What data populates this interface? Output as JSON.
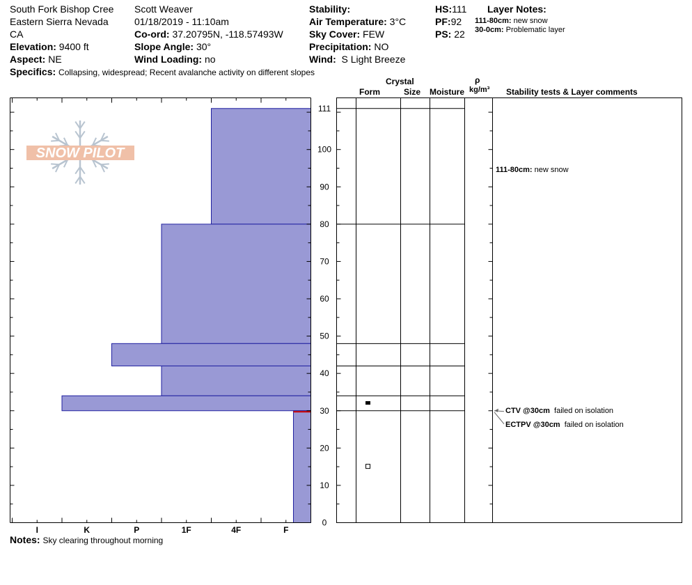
{
  "header": {
    "location": "South Fork Bishop Cree",
    "range": "Eastern Sierra Nevada",
    "state": "CA",
    "elevation_label": "Elevation:",
    "elevation_value": "9400 ft",
    "aspect_label": "Aspect:",
    "aspect_value": "NE",
    "specifics_label": "Specifics:",
    "specifics_value": "Collapsing, widespread;  Recent avalanche activity on different slopes",
    "observer": "Scott Weaver",
    "datetime": "01/18/2019 - 11:10am",
    "coord_label": "Co-ord:",
    "coord_value": "37.20795N, -118.57493W",
    "slope_label": "Slope Angle:",
    "slope_value": "30°",
    "wind_loading_label": "Wind Loading:",
    "wind_loading_value": "no",
    "stability_label": "Stability:",
    "air_temp_label": "Air Temperature:",
    "air_temp_value": "3°C",
    "sky_label": "Sky Cover:",
    "sky_value": "FEW",
    "precip_label": "Precipitation:",
    "precip_value": "NO",
    "wind_label": "Wind:",
    "wind_value": "S Light Breeze",
    "hs_label": "HS:",
    "hs_value": "111",
    "pf_label": "PF:",
    "pf_value": "92",
    "ps_label": "PS:",
    "ps_value": "22",
    "layer_notes_title": "Layer Notes:",
    "layer_notes": [
      {
        "range": "111-80cm:",
        "text": "new snow"
      },
      {
        "range": "30-0cm:",
        "text": "Problematic layer"
      }
    ]
  },
  "logo_text": "SNOW PILOT",
  "columns": {
    "crystal": "Crystal",
    "form": "Form",
    "size": "Size",
    "moisture": "Moisture",
    "rho": "ρ",
    "density_unit": "kg/m³",
    "stability": "Stability tests & Layer comments"
  },
  "comments": [
    {
      "range": "111-80cm:",
      "text": "new snow"
    }
  ],
  "tests": [
    {
      "label": "CTV @30cm",
      "result": "failed on isolation"
    },
    {
      "label": "ECTPV @30cm",
      "result": "failed on isolation"
    }
  ],
  "notes_label": "Notes:",
  "notes_value": "Sky clearing throughout morning",
  "colors": {
    "bar_fill": "#9999d5",
    "bar_stroke": "#2020a0",
    "weak_layer": "#cc0000",
    "logo": "#f0c0a8",
    "snowflake": "#b8c4d0"
  },
  "chart_data": {
    "type": "bar",
    "orientation": "horizontal",
    "title": "",
    "ylabel": "",
    "xlabel": "",
    "ylim": [
      0,
      114
    ],
    "yticks": [
      0,
      10,
      20,
      30,
      40,
      50,
      60,
      70,
      80,
      90,
      100,
      111
    ],
    "xcategories": [
      "I",
      "K",
      "P",
      "1F",
      "4F",
      "F"
    ],
    "hardness_scale_note": "F=1 ... I=6",
    "layers": [
      {
        "top": 111,
        "bottom": 80,
        "hardness_value": 2.0
      },
      {
        "top": 80,
        "bottom": 48,
        "hardness_value": 3.0
      },
      {
        "top": 48,
        "bottom": 42,
        "hardness_value": 4.0
      },
      {
        "top": 42,
        "bottom": 34,
        "hardness_value": 3.0
      },
      {
        "top": 34,
        "bottom": 30,
        "hardness_value": 5.0
      },
      {
        "top": 30,
        "bottom": 0,
        "hardness_value": 0.35
      }
    ],
    "layer_boundaries": [
      111,
      80,
      48,
      42,
      34,
      30
    ],
    "weak_layer_depth": 30,
    "form_markers": [
      {
        "depth": 32,
        "symbol": "filled-square"
      },
      {
        "depth": 15,
        "symbol": "open-square"
      }
    ]
  }
}
